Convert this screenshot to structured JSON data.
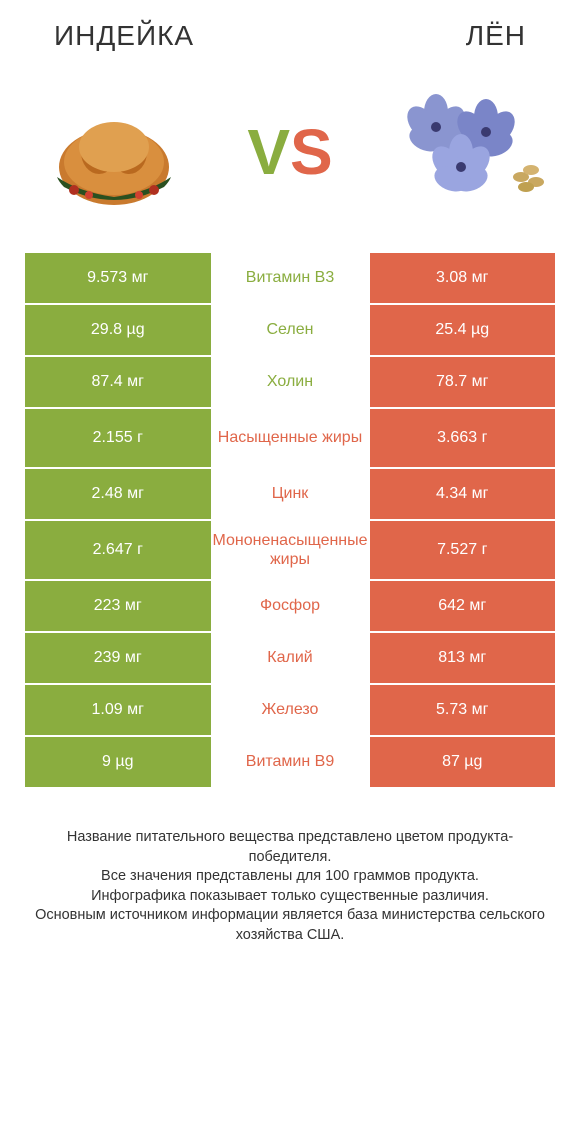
{
  "header": {
    "left": "ИНДЕЙКА",
    "right": "ЛЁН"
  },
  "vs": {
    "v": "V",
    "s": "S"
  },
  "colors": {
    "green": "#8aad3f",
    "orange": "#e0664a",
    "white": "#ffffff",
    "text": "#333333"
  },
  "rows": [
    {
      "left": "9.573 мг",
      "mid": "Витамин B3",
      "right": "3.08 мг",
      "winner": "left",
      "tall": false
    },
    {
      "left": "29.8 µg",
      "mid": "Селен",
      "right": "25.4 µg",
      "winner": "left",
      "tall": false
    },
    {
      "left": "87.4 мг",
      "mid": "Холин",
      "right": "78.7 мг",
      "winner": "left",
      "tall": false
    },
    {
      "left": "2.155 г",
      "mid": "Насыщенные жиры",
      "right": "3.663 г",
      "winner": "right",
      "tall": true
    },
    {
      "left": "2.48 мг",
      "mid": "Цинк",
      "right": "4.34 мг",
      "winner": "right",
      "tall": false
    },
    {
      "left": "2.647 г",
      "mid": "Мононенасыщенные жиры",
      "right": "7.527 г",
      "winner": "right",
      "tall": true
    },
    {
      "left": "223 мг",
      "mid": "Фосфор",
      "right": "642 мг",
      "winner": "right",
      "tall": false
    },
    {
      "left": "239 мг",
      "mid": "Калий",
      "right": "813 мг",
      "winner": "right",
      "tall": false
    },
    {
      "left": "1.09 мг",
      "mid": "Железо",
      "right": "5.73 мг",
      "winner": "right",
      "tall": false
    },
    {
      "left": "9 µg",
      "mid": "Витамин B9",
      "right": "87 µg",
      "winner": "right",
      "tall": false
    }
  ],
  "footer": {
    "line1": "Название питательного вещества представлено цветом продукта-победителя.",
    "line2": "Все значения представлены для 100 граммов продукта.",
    "line3": "Инфографика показывает только существенные различия.",
    "line4": "Основным источником информации является база министерства сельского хозяйства США."
  }
}
